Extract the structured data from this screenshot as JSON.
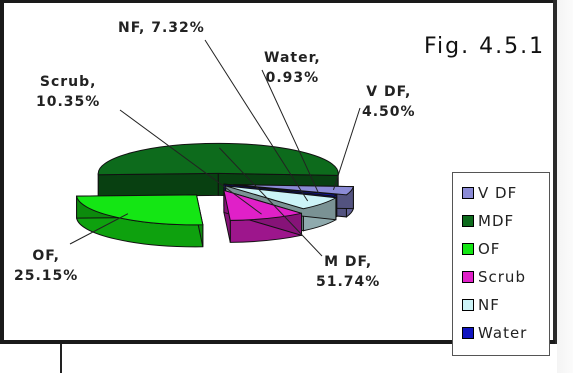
{
  "figure_label": "Fig. 4.5.1",
  "chart_data": {
    "type": "pie",
    "title": "",
    "style": "exploded 3D pie",
    "legend_position": "right",
    "series": [
      {
        "name": "VDF",
        "value": 4.5,
        "label_name": "V DF,",
        "label_value": "4.50%",
        "color": "#8b8bd6"
      },
      {
        "name": "MDF",
        "value": 51.74,
        "label_name": "M DF,",
        "label_value": "51.74%",
        "color": "#0d6b1c"
      },
      {
        "name": "OF",
        "value": 25.15,
        "label_name": "OF,",
        "label_value": "25.15%",
        "color": "#14e614"
      },
      {
        "name": "Scrub",
        "value": 10.35,
        "label_name": "Scrub,",
        "label_value": "10.35%",
        "color": "#e020c8"
      },
      {
        "name": "NF",
        "value": 7.32,
        "label_name": "NF, 7.32%",
        "label_value": "",
        "color": "#ccf3f7"
      },
      {
        "name": "Water",
        "value": 0.93,
        "label_name": "Water,",
        "label_value": "0.93%",
        "color": "#1014c0"
      }
    ]
  },
  "legend": [
    {
      "label": "V DF",
      "color": "#8b8bd6"
    },
    {
      "label": "MDF",
      "color": "#0d6b1c"
    },
    {
      "label": "OF",
      "color": "#14e614"
    },
    {
      "label": "Scrub",
      "color": "#e020c8"
    },
    {
      "label": "NF",
      "color": "#ccf3f7"
    },
    {
      "label": "Water",
      "color": "#1014c0"
    }
  ]
}
